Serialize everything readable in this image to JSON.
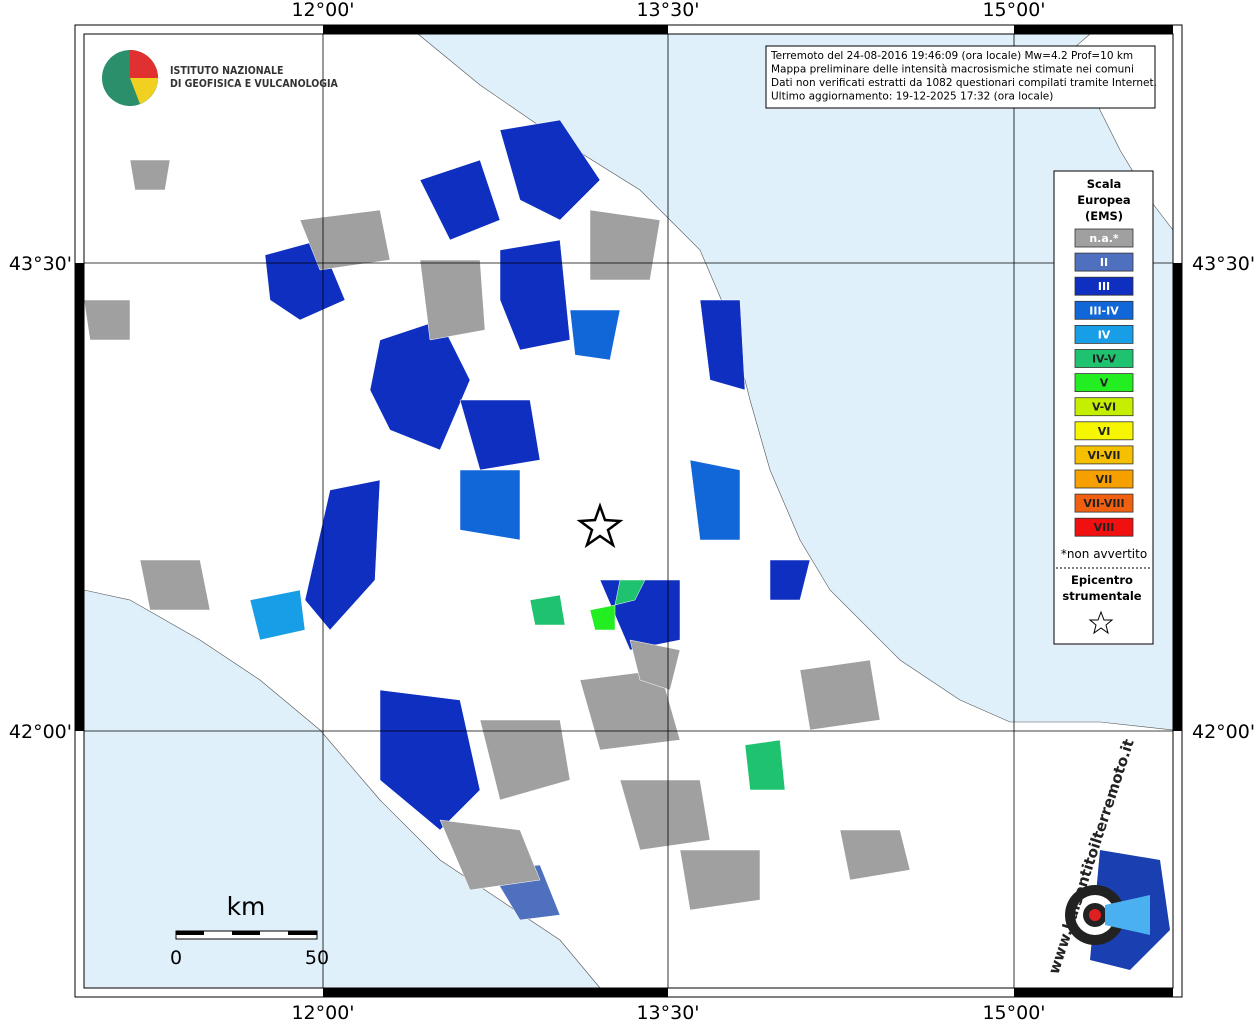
{
  "map": {
    "top_labels": [
      "12°00'",
      "13°30'",
      "15°00'"
    ],
    "bottom_labels": [
      "12°00'",
      "13°30'",
      "15°00'"
    ],
    "left_labels": [
      "43°30'",
      "42°00'"
    ],
    "right_labels": [
      "43°30'",
      "42°00'"
    ],
    "institute": [
      "ISTITUTO NAZIONALE",
      "DI GEOFISICA E VULCANOLOGIA"
    ],
    "info_box": [
      "Terremoto del 24-08-2016 19:46:09 (ora locale) Mw=4.2 Prof=10 km",
      "Mappa preliminare delle intensità macrosismiche stimate nei comuni",
      "Dati non verificati estratti da 1082 questionari compilati tramite Internet.",
      "Ultimo aggiornamento: 19-12-2025 17:32 (ora locale)"
    ],
    "legend": {
      "title": [
        "Scala",
        "Europea",
        "(EMS)"
      ],
      "items": [
        {
          "label": "n.a.*",
          "color": "#a0a0a0"
        },
        {
          "label": "II",
          "color": "#4f6fbf"
        },
        {
          "label": "III",
          "color": "#0f2fc0"
        },
        {
          "label": "III-IV",
          "color": "#1166d8"
        },
        {
          "label": "IV",
          "color": "#189ee6"
        },
        {
          "label": "IV-V",
          "color": "#1fc36f"
        },
        {
          "label": "V",
          "color": "#22ee22"
        },
        {
          "label": "V-VI",
          "color": "#c4f000"
        },
        {
          "label": "VI",
          "color": "#f6f600"
        },
        {
          "label": "VI-VII",
          "color": "#f6c000"
        },
        {
          "label": "VII",
          "color": "#f6a000"
        },
        {
          "label": "VII-VIII",
          "color": "#f06010"
        },
        {
          "label": "VIII",
          "color": "#f01010"
        }
      ],
      "note": "*non avvertito",
      "epicenter_title": [
        "Epicentro",
        "strumentale"
      ]
    },
    "scale_bar": {
      "unit": "km",
      "ticks": [
        0,
        50
      ]
    },
    "website": "www.haisentitoilterremoto.it"
  }
}
